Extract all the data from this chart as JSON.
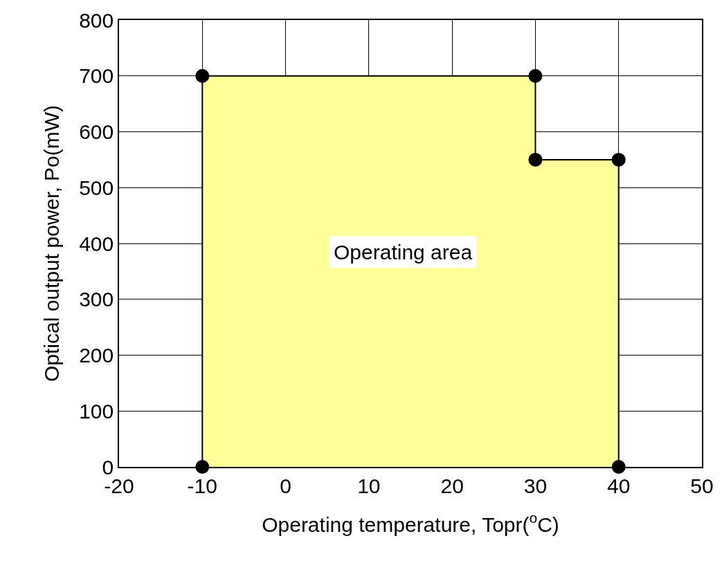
{
  "chart_data": {
    "type": "area",
    "xlabel": "Operating temperature, Topr($^{o}$C)",
    "ylabel": "Optical output power, Po(mW)",
    "series": [
      {
        "color": "#ffff99",
        "x": [
          -10,
          -10,
          30,
          30,
          40,
          40
        ],
        "values": [
          0,
          700,
          700,
          550,
          550,
          0
        ]
      }
    ],
    "annotations": [
      "Operating area"
    ],
    "xlim": [
      -20,
      50
    ],
    "xticks": [
      -20,
      -10,
      0,
      10,
      20,
      30,
      40,
      50
    ],
    "ylim": [
      0,
      800
    ],
    "yticks": [
      0,
      100,
      200,
      300,
      400,
      500,
      600,
      700,
      800
    ],
    "grid": true,
    "marker": "circle"
  }
}
